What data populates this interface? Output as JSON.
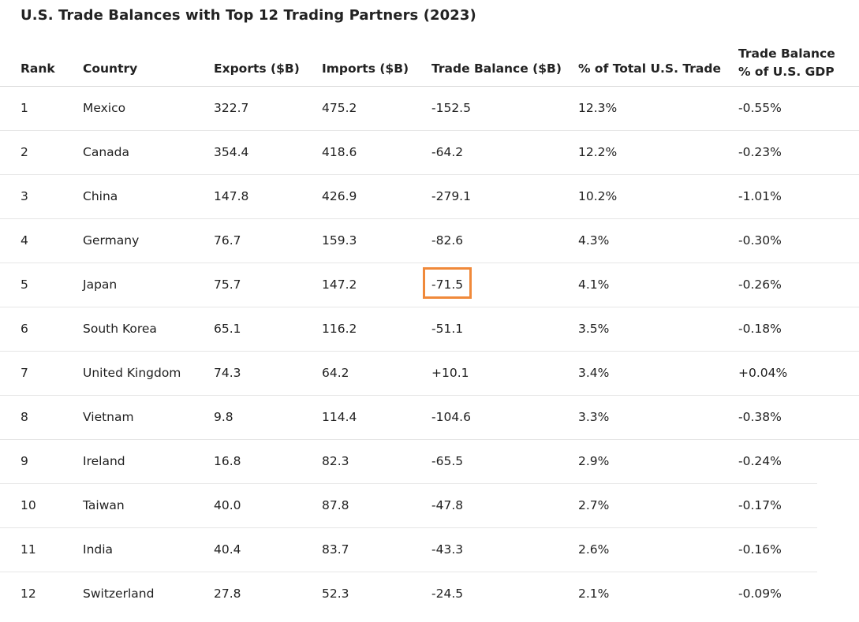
{
  "title": "U.S. Trade Balances with Top 12 Trading Partners (2023)",
  "columns": {
    "rank": "Rank",
    "country": "Country",
    "exports": "Exports ($B)",
    "imports": "Imports ($B)",
    "balance": "Trade Balance ($B)",
    "share": "% of Total U.S. Trade",
    "gdp_line1": "Trade Balance",
    "gdp_line2": "% of U.S. GDP"
  },
  "rows": [
    {
      "rank": "1",
      "country": "Mexico",
      "exports": "322.7",
      "imports": "475.2",
      "balance": "-152.5",
      "share": "12.3%",
      "gdp": "-0.55%"
    },
    {
      "rank": "2",
      "country": "Canada",
      "exports": "354.4",
      "imports": "418.6",
      "balance": "-64.2",
      "share": "12.2%",
      "gdp": "-0.23%"
    },
    {
      "rank": "3",
      "country": "China",
      "exports": "147.8",
      "imports": "426.9",
      "balance": "-279.1",
      "share": "10.2%",
      "gdp": "-1.01%"
    },
    {
      "rank": "4",
      "country": "Germany",
      "exports": "76.7",
      "imports": "159.3",
      "balance": "-82.6",
      "share": "4.3%",
      "gdp": "-0.30%"
    },
    {
      "rank": "5",
      "country": "Japan",
      "exports": "75.7",
      "imports": "147.2",
      "balance": "-71.5",
      "share": "4.1%",
      "gdp": "-0.26%"
    },
    {
      "rank": "6",
      "country": "South Korea",
      "exports": "65.1",
      "imports": "116.2",
      "balance": "-51.1",
      "share": "3.5%",
      "gdp": "-0.18%"
    },
    {
      "rank": "7",
      "country": "United Kingdom",
      "exports": "74.3",
      "imports": "64.2",
      "balance": "+10.1",
      "share": "3.4%",
      "gdp": "+0.04%"
    },
    {
      "rank": "8",
      "country": "Vietnam",
      "exports": "9.8",
      "imports": "114.4",
      "balance": "-104.6",
      "share": "3.3%",
      "gdp": "-0.38%"
    },
    {
      "rank": "9",
      "country": "Ireland",
      "exports": "16.8",
      "imports": "82.3",
      "balance": "-65.5",
      "share": "2.9%",
      "gdp": "-0.24%"
    },
    {
      "rank": "10",
      "country": "Taiwan",
      "exports": "40.0",
      "imports": "87.8",
      "balance": "-47.8",
      "share": "2.7%",
      "gdp": "-0.17%"
    },
    {
      "rank": "11",
      "country": "India",
      "exports": "40.4",
      "imports": "83.7",
      "balance": "-43.3",
      "share": "2.6%",
      "gdp": "-0.16%"
    },
    {
      "rank": "12",
      "country": "Switzerland",
      "exports": "27.8",
      "imports": "52.3",
      "balance": "-24.5",
      "share": "2.1%",
      "gdp": "-0.09%"
    }
  ],
  "highlight_color": "#f0893a"
}
